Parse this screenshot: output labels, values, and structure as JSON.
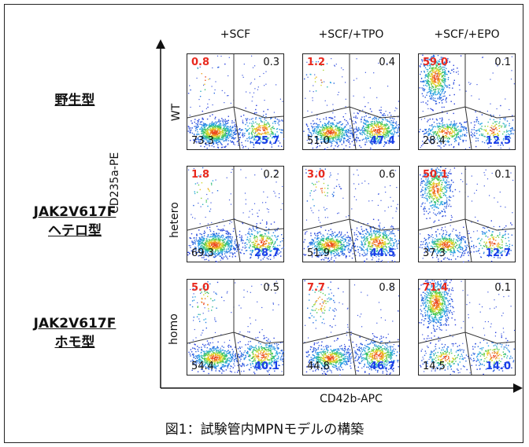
{
  "chart_data": {
    "type": "scatter",
    "subtype": "flow-cytometry-density-plot-grid",
    "xlabel": "CD42b-APC",
    "ylabel": "CD235a-PE",
    "conditions": [
      "+SCF",
      "+SCF/+TPO",
      "+SCF/+EPO"
    ],
    "genotypes": [
      {
        "name": "野生型",
        "lines": [
          "野生型"
        ],
        "row_label": "WT"
      },
      {
        "name": "JAK2V617F ヘテロ型",
        "lines": [
          "JAK2V617F",
          "ヘテロ型"
        ],
        "row_label": "hetero"
      },
      {
        "name": "JAK2V617F ホモ型",
        "lines": [
          "JAK2V617F",
          "ホモ型"
        ],
        "row_label": "homo"
      }
    ],
    "quadrant_percentages": [
      [
        {
          "ul": "0.8",
          "ur": "0.3",
          "ll": "73.3",
          "lr": "25.7"
        },
        {
          "ul": "1.2",
          "ur": "0.4",
          "ll": "51.0",
          "lr": "47.4"
        },
        {
          "ul": "59.0",
          "ur": "0.1",
          "ll": "28.4",
          "lr": "12.5"
        }
      ],
      [
        {
          "ul": "1.8",
          "ur": "0.2",
          "ll": "69.3",
          "lr": "28.7"
        },
        {
          "ul": "3.0",
          "ur": "0.6",
          "ll": "51.9",
          "lr": "44.5"
        },
        {
          "ul": "50.1",
          "ur": "0.1",
          "ll": "37.3",
          "lr": "12.7"
        }
      ],
      [
        {
          "ul": "5.0",
          "ur": "0.5",
          "ll": "54.4",
          "lr": "40.1"
        },
        {
          "ul": "7.7",
          "ur": "0.8",
          "ll": "44.8",
          "lr": "46.7"
        },
        {
          "ul": "71.4",
          "ur": "0.1",
          "ll": "14.5",
          "lr": "14.0"
        }
      ]
    ],
    "colors": {
      "upper_left": "#e8291e",
      "lower_right": "#1a3ee8",
      "other": "#111111"
    }
  },
  "caption": "図1：試験管内MPNモデルの構築"
}
